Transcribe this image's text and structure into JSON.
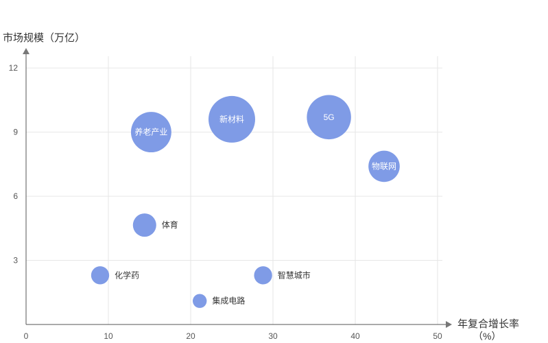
{
  "chart_data": {
    "type": "scatter",
    "ylabel": "市场规模（万亿）",
    "xlabel": "年复合增长率",
    "xunit": "（%）",
    "xlim": [
      0,
      50
    ],
    "ylim": [
      0,
      13
    ],
    "x_ticks": [
      0,
      10,
      20,
      30,
      40,
      50
    ],
    "y_ticks": [
      3,
      6,
      9,
      12
    ],
    "grid": true,
    "bubble_color": "#7f9be6",
    "axis_color": "#555555",
    "grid_color": "#e6e6e6",
    "points": [
      {
        "label": "养老产业",
        "x": 15.2,
        "y": 9.0,
        "size": 7.5,
        "label_inside": true
      },
      {
        "label": "新材料",
        "x": 25.0,
        "y": 9.6,
        "size": 10.0,
        "label_inside": true
      },
      {
        "label": "5G",
        "x": 36.8,
        "y": 9.7,
        "size": 9.0,
        "label_inside": true
      },
      {
        "label": "物联网",
        "x": 43.5,
        "y": 7.4,
        "size": 4.5,
        "label_inside": true
      },
      {
        "label": "体育",
        "x": 14.4,
        "y": 4.65,
        "size": 2.5,
        "label_inside": false
      },
      {
        "label": "化学药",
        "x": 9.0,
        "y": 2.3,
        "size": 1.5,
        "label_inside": false
      },
      {
        "label": "智慧城市",
        "x": 28.8,
        "y": 2.3,
        "size": 1.5,
        "label_inside": false
      },
      {
        "label": "集成电路",
        "x": 21.1,
        "y": 1.1,
        "size": 0.9,
        "label_inside": false
      }
    ]
  }
}
